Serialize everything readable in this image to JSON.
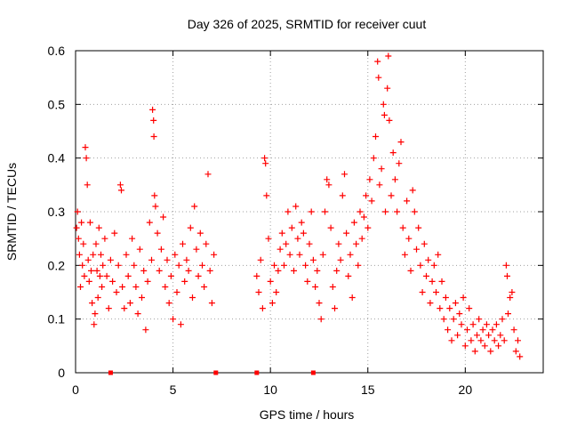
{
  "chart_data": {
    "type": "scatter",
    "title": "Day 326 of 2025, SRMTID for receiver cuut",
    "xlabel": "GPS time / hours",
    "ylabel": "SRMTID / TECUs",
    "xlim": [
      0,
      24
    ],
    "ylim": [
      0,
      0.6
    ],
    "xticks": [
      0,
      5,
      10,
      15,
      20
    ],
    "yticks": [
      0,
      0.1,
      0.2,
      0.3,
      0.4,
      0.5,
      0.6
    ],
    "grid": true,
    "marker": "+",
    "marker_color": "#ff0000",
    "zero_markers_x": [
      1.8,
      7.2,
      9.3,
      12.2
    ],
    "series": [
      {
        "name": "SRMTID",
        "points": [
          [
            0.05,
            0.27
          ],
          [
            0.1,
            0.3
          ],
          [
            0.15,
            0.25
          ],
          [
            0.2,
            0.22
          ],
          [
            0.25,
            0.16
          ],
          [
            0.3,
            0.28
          ],
          [
            0.35,
            0.2
          ],
          [
            0.4,
            0.24
          ],
          [
            0.45,
            0.18
          ],
          [
            0.5,
            0.42
          ],
          [
            0.55,
            0.4
          ],
          [
            0.6,
            0.35
          ],
          [
            0.65,
            0.21
          ],
          [
            0.7,
            0.17
          ],
          [
            0.75,
            0.28
          ],
          [
            0.8,
            0.19
          ],
          [
            0.85,
            0.13
          ],
          [
            0.9,
            0.22
          ],
          [
            0.95,
            0.09
          ],
          [
            1.0,
            0.11
          ],
          [
            1.05,
            0.24
          ],
          [
            1.1,
            0.19
          ],
          [
            1.15,
            0.14
          ],
          [
            1.2,
            0.27
          ],
          [
            1.25,
            0.18
          ],
          [
            1.3,
            0.22
          ],
          [
            1.35,
            0.16
          ],
          [
            1.4,
            0.2
          ],
          [
            1.5,
            0.25
          ],
          [
            1.6,
            0.18
          ],
          [
            1.7,
            0.12
          ],
          [
            1.8,
            0.21
          ],
          [
            1.9,
            0.17
          ],
          [
            2.0,
            0.26
          ],
          [
            2.1,
            0.15
          ],
          [
            2.2,
            0.2
          ],
          [
            2.3,
            0.35
          ],
          [
            2.35,
            0.34
          ],
          [
            2.4,
            0.16
          ],
          [
            2.5,
            0.12
          ],
          [
            2.6,
            0.22
          ],
          [
            2.7,
            0.18
          ],
          [
            2.8,
            0.13
          ],
          [
            2.9,
            0.25
          ],
          [
            3.0,
            0.2
          ],
          [
            3.1,
            0.16
          ],
          [
            3.2,
            0.11
          ],
          [
            3.3,
            0.23
          ],
          [
            3.4,
            0.14
          ],
          [
            3.5,
            0.19
          ],
          [
            3.6,
            0.08
          ],
          [
            3.7,
            0.17
          ],
          [
            3.8,
            0.28
          ],
          [
            3.9,
            0.21
          ],
          [
            3.95,
            0.49
          ],
          [
            4.0,
            0.47
          ],
          [
            4.02,
            0.44
          ],
          [
            4.05,
            0.33
          ],
          [
            4.1,
            0.31
          ],
          [
            4.2,
            0.26
          ],
          [
            4.3,
            0.19
          ],
          [
            4.4,
            0.23
          ],
          [
            4.5,
            0.29
          ],
          [
            4.6,
            0.16
          ],
          [
            4.7,
            0.21
          ],
          [
            4.8,
            0.13
          ],
          [
            4.9,
            0.18
          ],
          [
            5.0,
            0.1
          ],
          [
            5.1,
            0.22
          ],
          [
            5.2,
            0.15
          ],
          [
            5.3,
            0.2
          ],
          [
            5.4,
            0.09
          ],
          [
            5.5,
            0.24
          ],
          [
            5.6,
            0.17
          ],
          [
            5.7,
            0.21
          ],
          [
            5.8,
            0.19
          ],
          [
            5.9,
            0.27
          ],
          [
            6.0,
            0.14
          ],
          [
            6.1,
            0.31
          ],
          [
            6.2,
            0.23
          ],
          [
            6.3,
            0.18
          ],
          [
            6.4,
            0.26
          ],
          [
            6.5,
            0.2
          ],
          [
            6.6,
            0.16
          ],
          [
            6.7,
            0.24
          ],
          [
            6.8,
            0.37
          ],
          [
            6.9,
            0.19
          ],
          [
            7.0,
            0.13
          ],
          [
            7.1,
            0.22
          ],
          [
            9.3,
            0.18
          ],
          [
            9.4,
            0.15
          ],
          [
            9.5,
            0.21
          ],
          [
            9.6,
            0.12
          ],
          [
            9.7,
            0.4
          ],
          [
            9.75,
            0.39
          ],
          [
            9.8,
            0.33
          ],
          [
            9.9,
            0.25
          ],
          [
            10.0,
            0.17
          ],
          [
            10.1,
            0.13
          ],
          [
            10.2,
            0.2
          ],
          [
            10.3,
            0.15
          ],
          [
            10.4,
            0.19
          ],
          [
            10.5,
            0.23
          ],
          [
            10.6,
            0.26
          ],
          [
            10.7,
            0.2
          ],
          [
            10.8,
            0.24
          ],
          [
            10.9,
            0.3
          ],
          [
            11.0,
            0.22
          ],
          [
            11.1,
            0.27
          ],
          [
            11.2,
            0.19
          ],
          [
            11.3,
            0.31
          ],
          [
            11.4,
            0.25
          ],
          [
            11.5,
            0.22
          ],
          [
            11.6,
            0.28
          ],
          [
            11.7,
            0.26
          ],
          [
            11.8,
            0.2
          ],
          [
            11.9,
            0.17
          ],
          [
            12.0,
            0.24
          ],
          [
            12.1,
            0.3
          ],
          [
            12.2,
            0.21
          ],
          [
            12.3,
            0.16
          ],
          [
            12.4,
            0.19
          ],
          [
            12.5,
            0.13
          ],
          [
            12.6,
            0.1
          ],
          [
            12.7,
            0.22
          ],
          [
            12.8,
            0.3
          ],
          [
            12.9,
            0.36
          ],
          [
            13.0,
            0.35
          ],
          [
            13.1,
            0.27
          ],
          [
            13.2,
            0.16
          ],
          [
            13.3,
            0.12
          ],
          [
            13.4,
            0.19
          ],
          [
            13.5,
            0.24
          ],
          [
            13.6,
            0.21
          ],
          [
            13.7,
            0.33
          ],
          [
            13.8,
            0.37
          ],
          [
            13.9,
            0.26
          ],
          [
            14.0,
            0.18
          ],
          [
            14.1,
            0.22
          ],
          [
            14.2,
            0.14
          ],
          [
            14.3,
            0.28
          ],
          [
            14.4,
            0.24
          ],
          [
            14.5,
            0.2
          ],
          [
            14.6,
            0.3
          ],
          [
            14.7,
            0.25
          ],
          [
            14.8,
            0.29
          ],
          [
            14.9,
            0.33
          ],
          [
            15.0,
            0.27
          ],
          [
            15.1,
            0.36
          ],
          [
            15.2,
            0.32
          ],
          [
            15.3,
            0.4
          ],
          [
            15.4,
            0.44
          ],
          [
            15.5,
            0.58
          ],
          [
            15.55,
            0.55
          ],
          [
            15.6,
            0.35
          ],
          [
            15.7,
            0.38
          ],
          [
            15.8,
            0.5
          ],
          [
            15.85,
            0.48
          ],
          [
            15.9,
            0.3
          ],
          [
            16.0,
            0.53
          ],
          [
            16.05,
            0.59
          ],
          [
            16.1,
            0.47
          ],
          [
            16.2,
            0.33
          ],
          [
            16.3,
            0.41
          ],
          [
            16.4,
            0.36
          ],
          [
            16.5,
            0.3
          ],
          [
            16.6,
            0.39
          ],
          [
            16.7,
            0.43
          ],
          [
            16.8,
            0.27
          ],
          [
            16.9,
            0.22
          ],
          [
            17.0,
            0.32
          ],
          [
            17.1,
            0.25
          ],
          [
            17.2,
            0.19
          ],
          [
            17.3,
            0.34
          ],
          [
            17.4,
            0.3
          ],
          [
            17.5,
            0.23
          ],
          [
            17.6,
            0.27
          ],
          [
            17.7,
            0.2
          ],
          [
            17.8,
            0.15
          ],
          [
            17.9,
            0.24
          ],
          [
            18.0,
            0.18
          ],
          [
            18.1,
            0.21
          ],
          [
            18.2,
            0.13
          ],
          [
            18.3,
            0.17
          ],
          [
            18.4,
            0.2
          ],
          [
            18.5,
            0.15
          ],
          [
            18.6,
            0.22
          ],
          [
            18.7,
            0.12
          ],
          [
            18.8,
            0.17
          ],
          [
            18.9,
            0.1
          ],
          [
            19.0,
            0.14
          ],
          [
            19.1,
            0.08
          ],
          [
            19.2,
            0.12
          ],
          [
            19.3,
            0.06
          ],
          [
            19.4,
            0.1
          ],
          [
            19.5,
            0.13
          ],
          [
            19.6,
            0.07
          ],
          [
            19.7,
            0.11
          ],
          [
            19.8,
            0.09
          ],
          [
            19.9,
            0.14
          ],
          [
            20.0,
            0.05
          ],
          [
            20.1,
            0.08
          ],
          [
            20.2,
            0.12
          ],
          [
            20.3,
            0.06
          ],
          [
            20.4,
            0.09
          ],
          [
            20.5,
            0.04
          ],
          [
            20.6,
            0.07
          ],
          [
            20.7,
            0.1
          ],
          [
            20.8,
            0.06
          ],
          [
            20.9,
            0.08
          ],
          [
            21.0,
            0.05
          ],
          [
            21.1,
            0.09
          ],
          [
            21.2,
            0.07
          ],
          [
            21.3,
            0.04
          ],
          [
            21.4,
            0.08
          ],
          [
            21.5,
            0.06
          ],
          [
            21.6,
            0.09
          ],
          [
            21.7,
            0.05
          ],
          [
            21.8,
            0.07
          ],
          [
            21.9,
            0.1
          ],
          [
            22.0,
            0.06
          ],
          [
            22.1,
            0.2
          ],
          [
            22.15,
            0.18
          ],
          [
            22.2,
            0.11
          ],
          [
            22.3,
            0.14
          ],
          [
            22.4,
            0.15
          ],
          [
            22.5,
            0.08
          ],
          [
            22.6,
            0.04
          ],
          [
            22.7,
            0.06
          ],
          [
            22.8,
            0.03
          ]
        ]
      }
    ]
  }
}
